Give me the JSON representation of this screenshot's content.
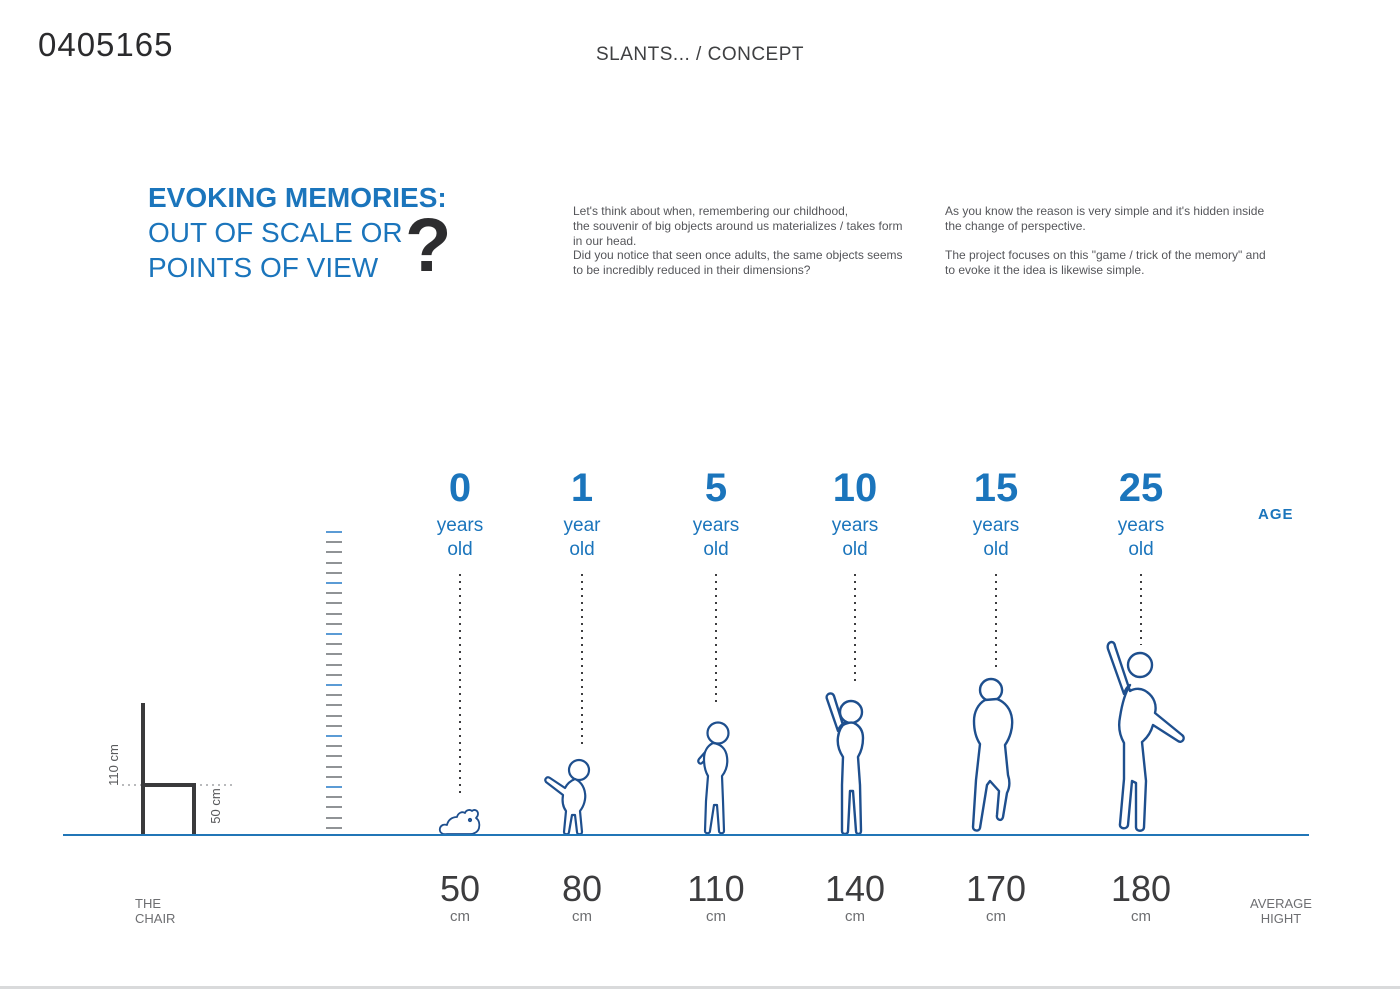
{
  "header": {
    "code": "0405165",
    "title": "SLANTS... / CONCEPT"
  },
  "intro": {
    "heading_line1": "EVOKING MEMORIES:",
    "heading_line2": "OUT OF SCALE OR",
    "heading_line3": "POINTS OF VIEW",
    "question_mark": "?",
    "paragraph1": "Let's think about when, remembering our childhood,\nthe souvenir of big objects around us materializes / takes form\nin our head.\nDid you notice that seen once adults, the same objects seems\nto be incredibly reduced in their dimensions?",
    "paragraph2": "As you know the reason is very simple and it's hidden inside\nthe change of perspective.\n\nThe project focuses on this \"game / trick of the memory\" and\nto evoke it the idea is likewise simple."
  },
  "chart_data": {
    "type": "table",
    "title": "Age vs average height comparison",
    "age_axis_label": "AGE",
    "height_axis_label": "AVERAGE\nHIGHT",
    "ages_years": [
      0,
      1,
      5,
      10,
      15,
      25
    ],
    "heights_cm": [
      50,
      80,
      110,
      140,
      170,
      180
    ],
    "columns": [
      {
        "age_value": "0",
        "age_unit": "years\nold",
        "height_value": "50",
        "height_unit": "cm",
        "figure": "baby-crawling"
      },
      {
        "age_value": "1",
        "age_unit": "year\nold",
        "height_value": "80",
        "height_unit": "cm",
        "figure": "toddler-reaching"
      },
      {
        "age_value": "5",
        "age_unit": "years\nold",
        "height_value": "110",
        "height_unit": "cm",
        "figure": "child-standing"
      },
      {
        "age_value": "10",
        "age_unit": "years\nold",
        "height_value": "140",
        "height_unit": "cm",
        "figure": "kid-reaching-up"
      },
      {
        "age_value": "15",
        "age_unit": "years\nold",
        "height_value": "170",
        "height_unit": "cm",
        "figure": "teen-walking"
      },
      {
        "age_value": "25",
        "age_unit": "years\nold",
        "height_value": "180",
        "height_unit": "cm",
        "figure": "adult-reaching-up"
      }
    ]
  },
  "chair": {
    "label": "THE\nCHAIR",
    "back_height_label": "110 cm",
    "seat_height_label": "50 cm"
  },
  "ruler": {
    "dash_count": 30,
    "major_every": 5
  },
  "colors": {
    "accent_blue": "#1b75bc",
    "ruler_blue": "#5b9bd5",
    "ruler_gray": "#909396",
    "figure_outline": "#1e4f8e",
    "ground_blue": "#2176b7",
    "text_dark": "#3c3c3e",
    "text_gray": "#6d6e71"
  }
}
